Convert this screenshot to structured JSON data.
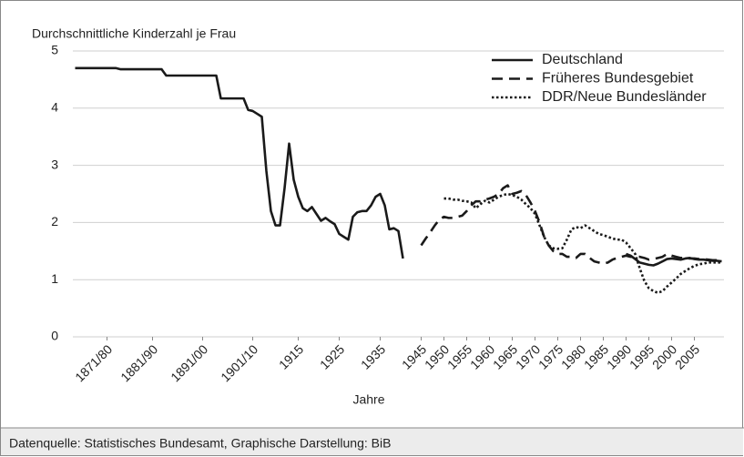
{
  "chart_data": {
    "type": "line",
    "ylabel": "Durchschnittliche Kinderzahl je Frau",
    "xlabel": "Jahre",
    "source": "Datenquelle: Statistisches Bundesamt, Graphische Darstellung: BiB",
    "ylim": [
      0,
      5
    ],
    "yticks": [
      0,
      1,
      2,
      3,
      4,
      5
    ],
    "grid": true,
    "legend": "top-right",
    "categories": [
      null,
      null,
      null,
      null,
      null,
      null,
      null,
      "1871/80",
      null,
      null,
      null,
      null,
      null,
      null,
      null,
      null,
      null,
      "1881/90",
      null,
      null,
      null,
      null,
      null,
      null,
      null,
      null,
      null,
      null,
      "1891/00",
      null,
      null,
      null,
      null,
      null,
      null,
      null,
      null,
      null,
      null,
      "1901/10",
      null,
      null,
      null,
      null,
      null,
      null,
      null,
      null,
      null,
      "1915",
      null,
      null,
      null,
      null,
      null,
      null,
      null,
      null,
      "1925",
      null,
      null,
      null,
      null,
      null,
      null,
      null,
      null,
      "1935",
      null,
      null,
      null,
      null,
      null,
      null,
      null,
      null,
      "1945",
      null,
      null,
      null,
      null,
      "1950",
      null,
      null,
      null,
      null,
      "1955",
      null,
      null,
      null,
      null,
      "1960",
      null,
      null,
      null,
      null,
      "1965",
      null,
      null,
      null,
      null,
      "1970",
      null,
      null,
      null,
      null,
      "1975",
      null,
      null,
      null,
      null,
      "1980",
      null,
      null,
      null,
      null,
      "1985",
      null,
      null,
      null,
      null,
      "1990",
      null,
      null,
      null,
      null,
      "1995",
      null,
      null,
      null,
      null,
      "2000",
      null,
      null,
      null,
      null,
      "2005",
      null,
      null,
      null,
      null,
      null,
      null
    ],
    "series": [
      {
        "name": "Deutschland",
        "color": "#1a1a1a",
        "style": "solid",
        "values": [
          4.7,
          4.7,
          4.7,
          4.7,
          4.7,
          4.7,
          4.7,
          4.7,
          4.7,
          4.7,
          4.68,
          4.68,
          4.68,
          4.68,
          4.68,
          4.68,
          4.68,
          4.68,
          4.68,
          4.68,
          4.57,
          4.57,
          4.57,
          4.57,
          4.57,
          4.57,
          4.57,
          4.57,
          4.57,
          4.57,
          4.57,
          4.57,
          4.17,
          4.17,
          4.17,
          4.17,
          4.17,
          4.17,
          3.97,
          3.95,
          3.9,
          3.85,
          2.9,
          2.2,
          1.95,
          1.95,
          2.6,
          3.38,
          2.75,
          2.45,
          2.25,
          2.2,
          2.27,
          2.15,
          2.03,
          2.08,
          2.02,
          1.97,
          1.8,
          1.75,
          1.7,
          2.1,
          2.18,
          2.2,
          2.2,
          2.3,
          2.45,
          2.5,
          2.3,
          1.88,
          1.9,
          1.85,
          1.37,
          null,
          null,
          null,
          null,
          null,
          null,
          null,
          null,
          null,
          null,
          null,
          null,
          null,
          null,
          null,
          null,
          null,
          null,
          null,
          null,
          null,
          null,
          null,
          null,
          null,
          null,
          null,
          null,
          null,
          null,
          null,
          null,
          null,
          null,
          null,
          null,
          null,
          null,
          null,
          null,
          null,
          null,
          null,
          null,
          null,
          null,
          null,
          null,
          1.45,
          1.42,
          1.36,
          1.3,
          1.28,
          1.26,
          1.25,
          1.28,
          1.32,
          1.36,
          1.37,
          1.36,
          1.35,
          1.37,
          1.38,
          1.36,
          1.35,
          1.35,
          1.34,
          1.33,
          1.33,
          1.32
        ]
      },
      {
        "name": "Früheres Bundesgebiet",
        "color": "#1a1a1a",
        "style": "dashed",
        "values": [
          null,
          null,
          null,
          null,
          null,
          null,
          null,
          null,
          null,
          null,
          null,
          null,
          null,
          null,
          null,
          null,
          null,
          null,
          null,
          null,
          null,
          null,
          null,
          null,
          null,
          null,
          null,
          null,
          null,
          null,
          null,
          null,
          null,
          null,
          null,
          null,
          null,
          null,
          null,
          null,
          null,
          null,
          null,
          null,
          null,
          null,
          null,
          null,
          null,
          null,
          null,
          null,
          null,
          null,
          null,
          null,
          null,
          null,
          null,
          null,
          null,
          null,
          null,
          null,
          null,
          null,
          null,
          null,
          null,
          null,
          null,
          null,
          null,
          null,
          null,
          null,
          1.6,
          1.72,
          1.83,
          1.95,
          2.05,
          2.1,
          2.08,
          2.08,
          2.1,
          2.12,
          2.2,
          2.3,
          2.37,
          2.37,
          2.4,
          2.42,
          2.45,
          2.5,
          2.6,
          2.65,
          2.5,
          2.52,
          2.55,
          2.48,
          2.35,
          2.2,
          2.0,
          1.75,
          1.6,
          1.5,
          1.45,
          1.45,
          1.4,
          1.4,
          1.38,
          1.45,
          1.45,
          1.38,
          1.32,
          1.3,
          1.28,
          1.3,
          1.35,
          1.38,
          1.4,
          1.42,
          1.4,
          1.4,
          1.4,
          1.38,
          1.35,
          1.36,
          1.38,
          1.4,
          1.45,
          1.42,
          1.4,
          1.38,
          1.38,
          1.37,
          1.37,
          1.36,
          1.36,
          1.35,
          1.34,
          1.34,
          1.33
        ]
      },
      {
        "name": "DDR/Neue Bundesländer",
        "color": "#1a1a1a",
        "style": "dotted",
        "values": [
          null,
          null,
          null,
          null,
          null,
          null,
          null,
          null,
          null,
          null,
          null,
          null,
          null,
          null,
          null,
          null,
          null,
          null,
          null,
          null,
          null,
          null,
          null,
          null,
          null,
          null,
          null,
          null,
          null,
          null,
          null,
          null,
          null,
          null,
          null,
          null,
          null,
          null,
          null,
          null,
          null,
          null,
          null,
          null,
          null,
          null,
          null,
          null,
          null,
          null,
          null,
          null,
          null,
          null,
          null,
          null,
          null,
          null,
          null,
          null,
          null,
          null,
          null,
          null,
          null,
          null,
          null,
          null,
          null,
          null,
          null,
          null,
          null,
          null,
          null,
          null,
          null,
          null,
          null,
          null,
          null,
          2.42,
          2.42,
          2.4,
          2.4,
          2.38,
          2.37,
          2.35,
          2.25,
          2.32,
          2.38,
          2.35,
          2.4,
          2.45,
          2.48,
          2.5,
          2.48,
          2.45,
          2.4,
          2.32,
          2.25,
          2.15,
          1.95,
          1.75,
          1.6,
          1.55,
          1.54,
          1.55,
          1.7,
          1.88,
          1.92,
          1.9,
          1.95,
          1.9,
          1.85,
          1.8,
          1.78,
          1.75,
          1.72,
          1.7,
          1.7,
          1.65,
          1.55,
          1.45,
          1.2,
          0.98,
          0.85,
          0.8,
          0.77,
          0.8,
          0.88,
          0.95,
          1.02,
          1.1,
          1.15,
          1.2,
          1.24,
          1.27,
          1.28,
          1.3,
          1.3,
          1.3,
          1.3
        ]
      }
    ]
  }
}
